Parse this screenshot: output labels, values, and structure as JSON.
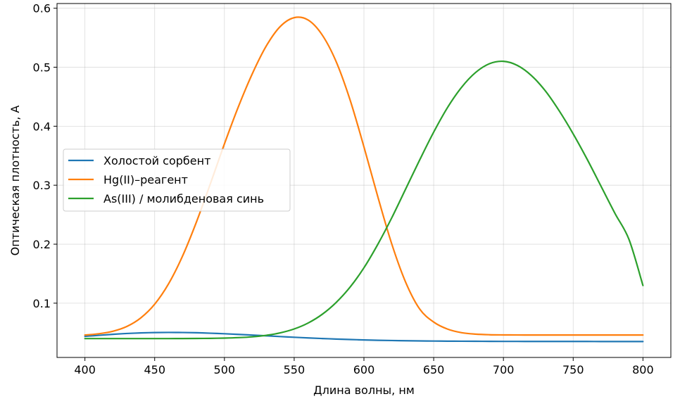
{
  "chart_data": {
    "type": "line",
    "title": "",
    "xlabel": "Длина волны, нм",
    "ylabel": "Оптическая плотность, A",
    "xlim": [
      380,
      820
    ],
    "ylim": [
      0.008,
      0.608
    ],
    "xticks": [
      400,
      450,
      500,
      550,
      600,
      650,
      700,
      750,
      800
    ],
    "yticks": [
      0.1,
      0.2,
      0.3,
      0.4,
      0.5,
      0.6
    ],
    "grid": true,
    "legend_position": "center-left",
    "x": [
      400,
      410,
      420,
      430,
      440,
      450,
      460,
      470,
      480,
      490,
      500,
      510,
      520,
      530,
      540,
      550,
      560,
      570,
      580,
      590,
      600,
      610,
      620,
      630,
      640,
      650,
      660,
      670,
      680,
      690,
      700,
      710,
      720,
      730,
      740,
      750,
      760,
      770,
      780,
      790,
      800
    ],
    "series": [
      {
        "name": "Холостой сорбент",
        "color": "#1f77b4",
        "values": [
          0.0438,
          0.0455,
          0.0472,
          0.0486,
          0.0496,
          0.0502,
          0.0504,
          0.0503,
          0.0499,
          0.0491,
          0.0482,
          0.0471,
          0.0459,
          0.0447,
          0.0434,
          0.0422,
          0.0411,
          0.0401,
          0.0392,
          0.0384,
          0.0377,
          0.0371,
          0.0367,
          0.0363,
          0.036,
          0.0358,
          0.0356,
          0.0355,
          0.0354,
          0.0353,
          0.0352,
          0.0352,
          0.0351,
          0.0351,
          0.0351,
          0.0351,
          0.0351,
          0.035,
          0.035,
          0.035,
          0.035
        ]
      },
      {
        "name": "Hg(II)–реагент",
        "color": "#ff7f0e",
        "values": [
          0.046,
          0.0482,
          0.0524,
          0.0605,
          0.075,
          0.0983,
          0.133,
          0.18,
          0.238,
          0.303,
          0.37,
          0.433,
          0.489,
          0.536,
          0.569,
          0.584,
          0.58,
          0.555,
          0.51,
          0.445,
          0.365,
          0.28,
          0.2,
          0.135,
          0.09,
          0.068,
          0.056,
          0.05,
          0.0475,
          0.0465,
          0.0462,
          0.0461,
          0.046,
          0.046,
          0.046,
          0.046,
          0.046,
          0.046,
          0.046,
          0.046,
          0.046
        ]
      },
      {
        "name": "As(III) / молибденовая синь",
        "color": "#2ca02c",
        "values": [
          0.04,
          0.04,
          0.04,
          0.04,
          0.04,
          0.04,
          0.04,
          0.0401,
          0.0402,
          0.0404,
          0.0408,
          0.0416,
          0.043,
          0.0455,
          0.0497,
          0.0563,
          0.0664,
          0.081,
          0.101,
          0.127,
          0.16,
          0.2,
          0.245,
          0.294,
          0.343,
          0.39,
          0.432,
          0.466,
          0.491,
          0.506,
          0.51,
          0.503,
          0.486,
          0.46,
          0.426,
          0.387,
          0.344,
          0.298,
          0.252,
          0.208,
          0.13
        ]
      }
    ]
  }
}
